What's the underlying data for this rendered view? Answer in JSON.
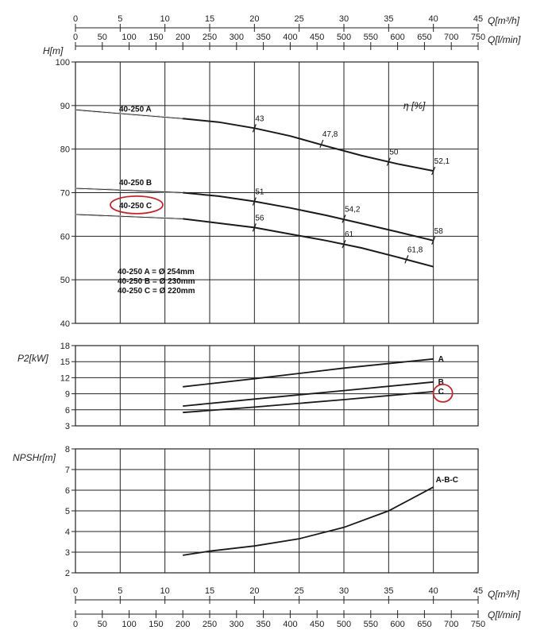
{
  "chart_data": [
    {
      "type": "line",
      "ylabel": "H[m]",
      "xlabel": "Q[m³/h]",
      "xlim": [
        0,
        45
      ],
      "ylim": [
        40,
        100
      ],
      "x_ticks": [
        "0",
        "5",
        "10",
        "15",
        "20",
        "25",
        "30",
        "35",
        "40",
        "45"
      ],
      "y_ticks": [
        "40",
        "50",
        "60",
        "70",
        "80",
        "90",
        "100"
      ],
      "series": [
        {
          "name": "40-250 A",
          "x": [
            0,
            12,
            16,
            20,
            24,
            28,
            32,
            36,
            40
          ],
          "y": [
            89,
            87,
            86.2,
            84.8,
            83,
            80.7,
            78.5,
            76.6,
            75
          ]
        },
        {
          "name": "40-250 B",
          "x": [
            0,
            12,
            16,
            20,
            24,
            28,
            32,
            36,
            40
          ],
          "y": [
            71,
            70,
            69.2,
            68,
            66.5,
            64.8,
            62.9,
            61,
            59
          ]
        },
        {
          "name": "40-250 C",
          "x": [
            0,
            12,
            16,
            20,
            24,
            28,
            32,
            36,
            40
          ],
          "y": [
            65,
            64,
            63,
            62,
            60.5,
            59,
            57.3,
            55.2,
            53
          ]
        }
      ],
      "efficiency_label": "η [%]",
      "efficiency_marks": [
        {
          "series": "40-250 A",
          "label": "43",
          "x": 20,
          "y": 84.8
        },
        {
          "series": "40-250 A",
          "label": "47,8",
          "x": 27.5,
          "y": 81.2
        },
        {
          "series": "40-250 A",
          "label": "50",
          "x": 35,
          "y": 77.1
        },
        {
          "series": "40-250 A",
          "label": "52,1",
          "x": 40,
          "y": 75
        },
        {
          "series": "40-250 B",
          "label": "51",
          "x": 20,
          "y": 68
        },
        {
          "series": "40-250 B",
          "label": "54,2",
          "x": 30,
          "y": 64
        },
        {
          "series": "40-250 B",
          "label": "58",
          "x": 40,
          "y": 59
        },
        {
          "series": "40-250 C",
          "label": "56",
          "x": 20,
          "y": 62
        },
        {
          "series": "40-250 C",
          "label": "61",
          "x": 30,
          "y": 58.2
        },
        {
          "series": "40-250 C",
          "label": "61,8",
          "x": 37,
          "y": 54.7
        }
      ],
      "notes": [
        "40-250 A = Ø 254mm",
        "40-250 B = Ø 230mm",
        "40-250 C = Ø 220mm"
      ],
      "highlight": "40-250 C"
    },
    {
      "type": "line",
      "ylabel": "P2[kW]",
      "xlim": [
        0,
        45
      ],
      "ylim": [
        3,
        18
      ],
      "y_ticks": [
        "3",
        "6",
        "9",
        "12",
        "15",
        "18"
      ],
      "series": [
        {
          "name": "A",
          "x": [
            12,
            20,
            30,
            40
          ],
          "y": [
            10.3,
            11.8,
            13.8,
            15.5
          ]
        },
        {
          "name": "B",
          "x": [
            12,
            20,
            30,
            40
          ],
          "y": [
            6.7,
            8.0,
            9.6,
            11.2
          ]
        },
        {
          "name": "C",
          "x": [
            12,
            20,
            30,
            40
          ],
          "y": [
            5.5,
            6.5,
            7.9,
            9.4
          ]
        }
      ],
      "highlight": "C"
    },
    {
      "type": "line",
      "ylabel": "NPSHr[m]",
      "xlim": [
        0,
        45
      ],
      "ylim": [
        2,
        8
      ],
      "y_ticks": [
        "2",
        "3",
        "4",
        "5",
        "6",
        "7",
        "8"
      ],
      "x_ticks": [
        "0",
        "5",
        "10",
        "15",
        "20",
        "25",
        "30",
        "35",
        "40",
        "45"
      ],
      "series": [
        {
          "name": "A-B-C",
          "x": [
            12,
            15,
            20,
            25,
            30,
            35,
            40
          ],
          "y": [
            2.85,
            3.05,
            3.3,
            3.65,
            4.2,
            5.0,
            6.15
          ]
        }
      ]
    }
  ],
  "axes": {
    "q_m3h_label": "Q[m³/h]",
    "q_lmin_label": "Q[l/min]",
    "lmin_ticks": [
      "0",
      "50",
      "100",
      "150",
      "200",
      "250",
      "300",
      "350",
      "400",
      "450",
      "500",
      "550",
      "600",
      "650",
      "700",
      "750"
    ]
  },
  "colors": {
    "ink": "#1a1a1a",
    "highlight": "#c0272d"
  }
}
